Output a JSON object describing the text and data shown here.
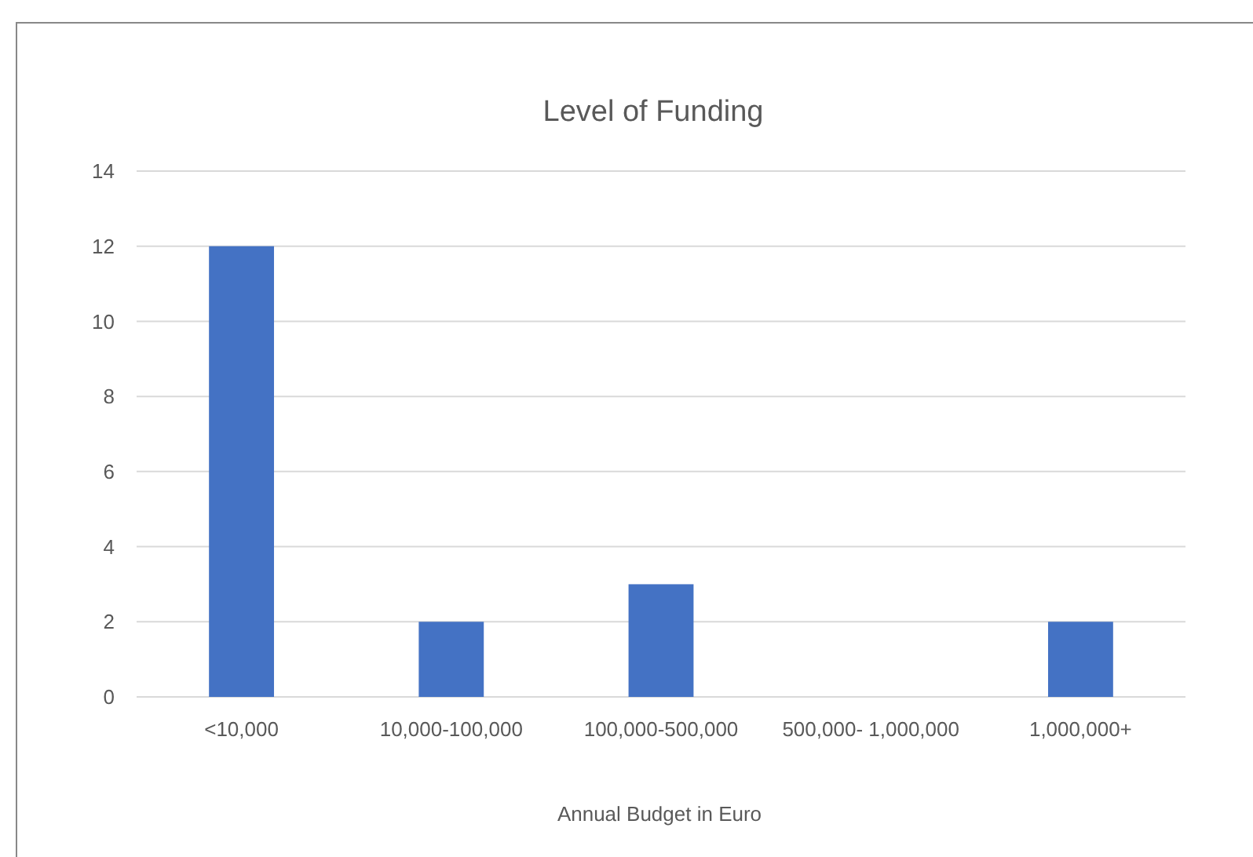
{
  "chart_data": {
    "type": "bar",
    "title": "Level of Funding",
    "xlabel": "Annual Budget in Euro",
    "categories": [
      "<10,000",
      "10,000-100,000",
      "100,000-500,000",
      "500,000- 1,000,000",
      "1,000,000+"
    ],
    "values": [
      12,
      2,
      3,
      0,
      2
    ],
    "color": "#4472c4",
    "ylim": [
      0,
      14
    ],
    "yticks": [
      0,
      2,
      4,
      6,
      8,
      10,
      12,
      14
    ],
    "grid": "y"
  }
}
